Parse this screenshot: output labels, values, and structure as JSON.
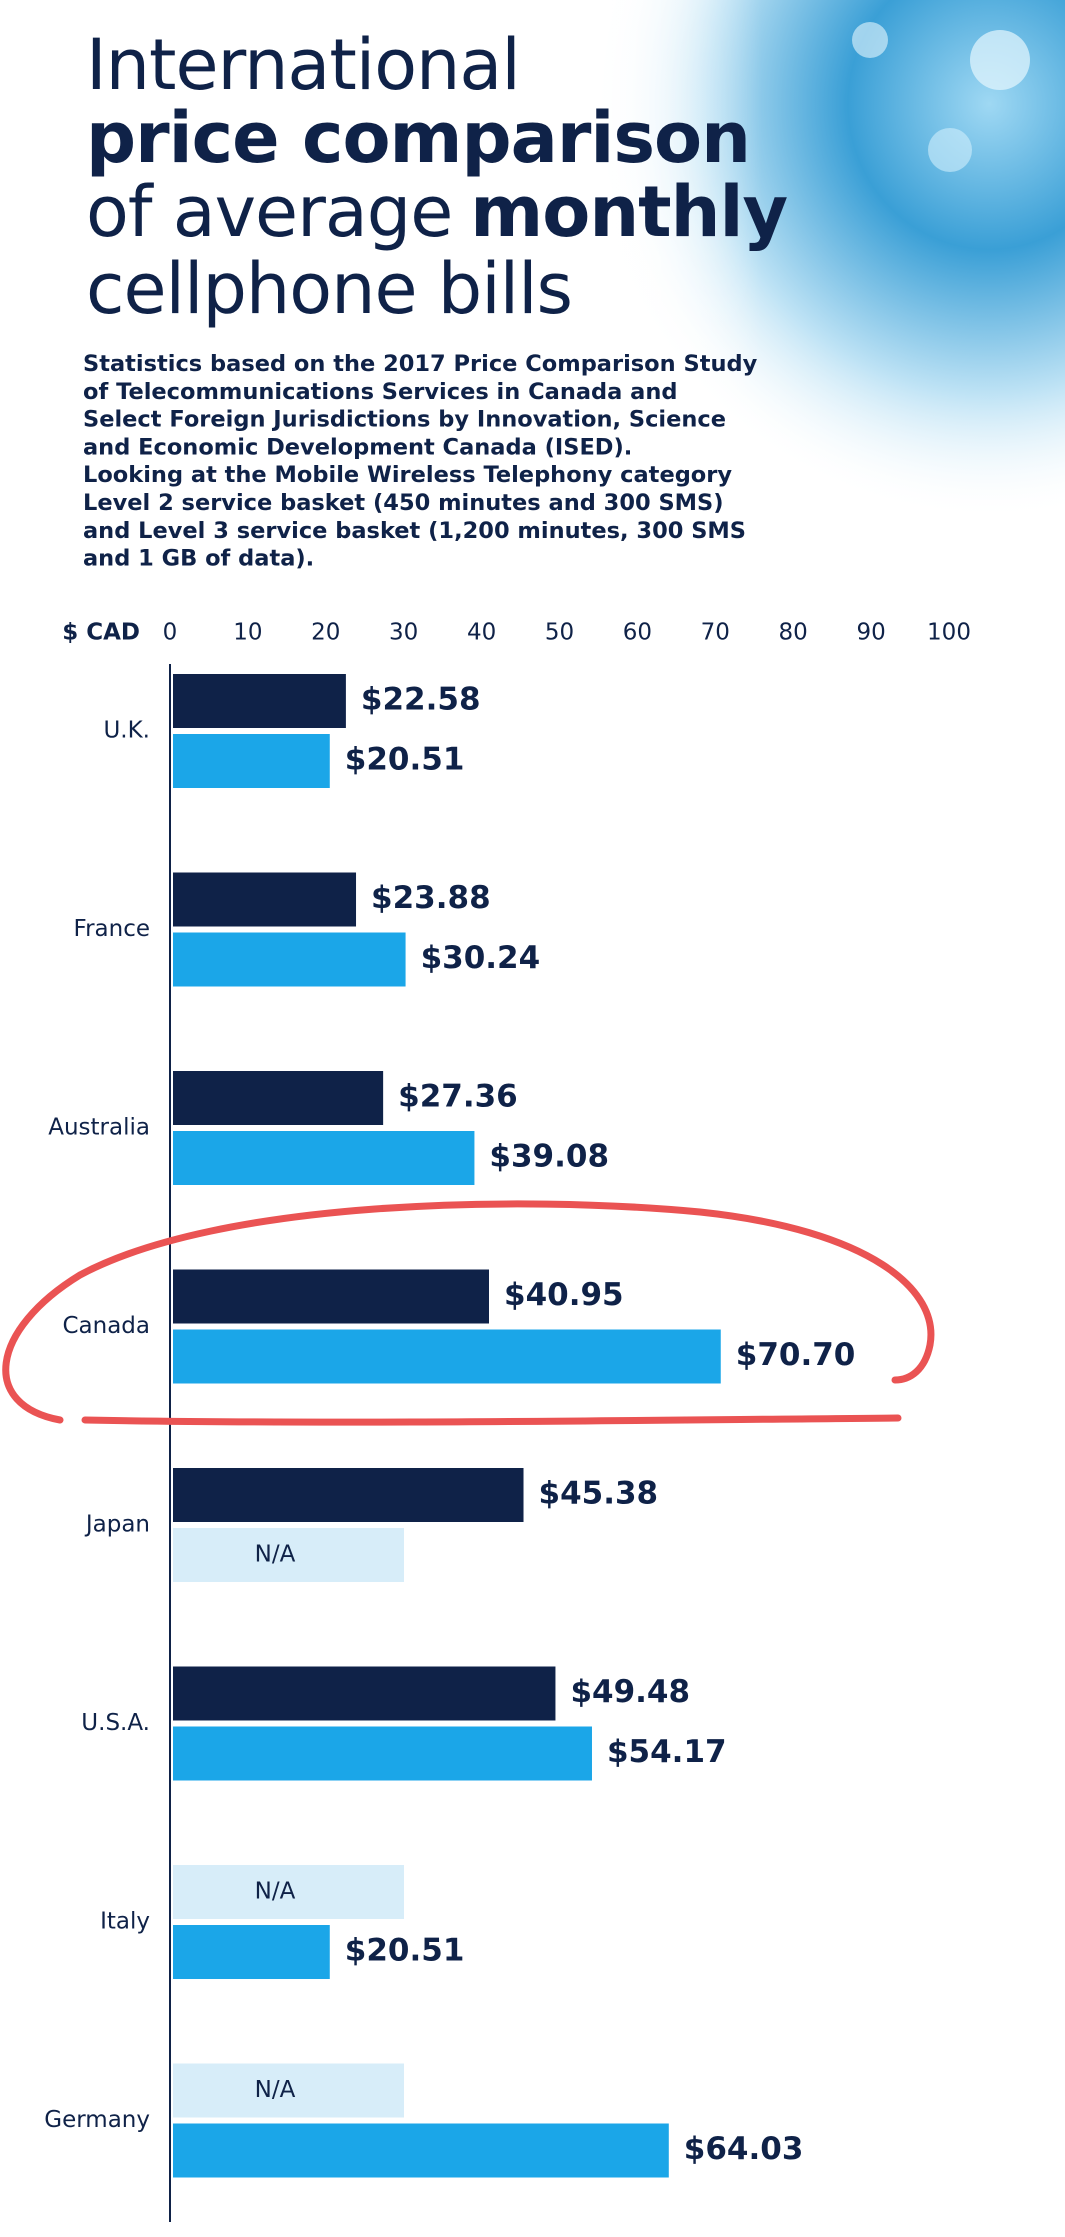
{
  "chart_data": {
    "type": "bar",
    "orientation": "horizontal",
    "title_lines": [
      [
        {
          "text": "International",
          "bold": false
        }
      ],
      [
        {
          "text": "price comparison",
          "bold": true
        }
      ],
      [
        {
          "text": "of average",
          "bold": false
        },
        {
          "text": "monthly",
          "bold": true
        }
      ],
      [
        {
          "text": "cellphone bills",
          "bold": false
        }
      ]
    ],
    "subtitle_lines": [
      "Statistics based on the 2017 Price Comparison Study",
      "of Telecommunications Services in Canada and",
      "Select Foreign Jurisdictions by Innovation, Science",
      "and Economic Development Canada (ISED).",
      "Looking at the Mobile Wireless Telephony category",
      "Level 2 service basket (450 minutes and 300 SMS)",
      "and Level 3 service basket (1,200 minutes, 300 SMS",
      "and 1 GB of data)."
    ],
    "x_label": "$ CAD",
    "xlim": [
      0,
      100
    ],
    "xticks": [
      0,
      10,
      20,
      30,
      40,
      50,
      60,
      70,
      80,
      90,
      100
    ],
    "categories": [
      "U.K.",
      "France",
      "Australia",
      "Canada",
      "Japan",
      "U.S.A.",
      "Italy",
      "Germany"
    ],
    "series": [
      {
        "color": "#0f2248",
        "values": [
          22.58,
          23.88,
          27.36,
          40.95,
          45.38,
          49.48,
          null,
          null
        ],
        "value_labels": [
          "$22.58",
          "$23.88",
          "$27.36",
          "$40.95",
          "$45.38",
          "$49.48",
          "N/A",
          "N/A"
        ]
      },
      {
        "color": "#1ba6e8",
        "values": [
          20.51,
          30.24,
          39.08,
          70.7,
          null,
          54.17,
          20.51,
          64.03
        ],
        "value_labels": [
          "$20.51",
          "$30.24",
          "$39.08",
          "$70.70",
          "N/A",
          "$54.17",
          "$20.51",
          "$64.03"
        ]
      }
    ]
  }
}
